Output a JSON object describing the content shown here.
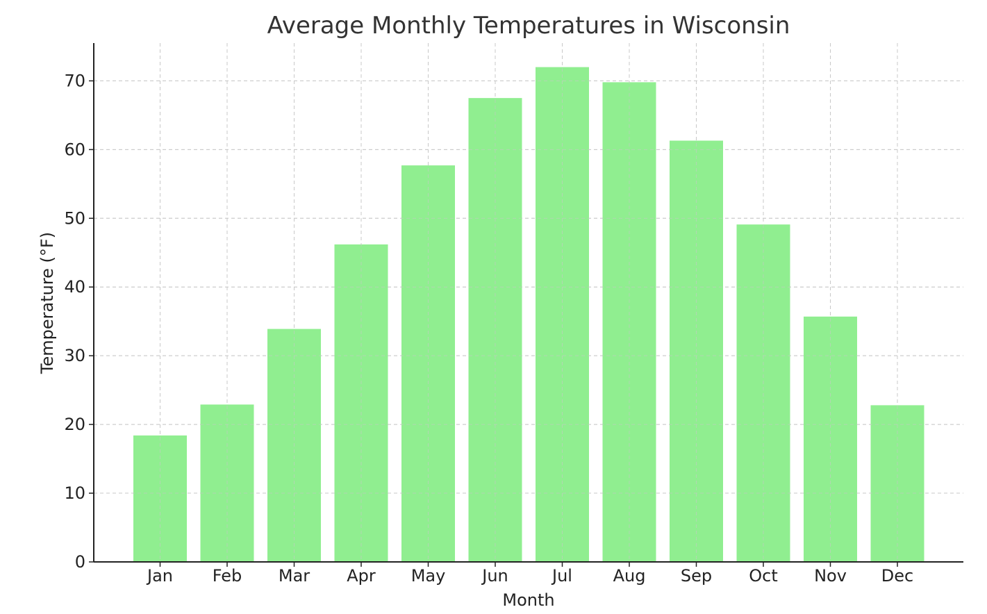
{
  "chart_data": {
    "type": "bar",
    "title": "Average Monthly Temperatures in Wisconsin",
    "xlabel": "Month",
    "ylabel": "Temperature (°F)",
    "categories": [
      "Jan",
      "Feb",
      "Mar",
      "Apr",
      "May",
      "Jun",
      "Jul",
      "Aug",
      "Sep",
      "Oct",
      "Nov",
      "Dec"
    ],
    "values": [
      18.4,
      22.9,
      33.9,
      46.2,
      57.7,
      67.5,
      72.0,
      69.8,
      61.3,
      49.1,
      35.7,
      22.8
    ],
    "ylim": [
      0,
      75.5
    ],
    "yticks": [
      0,
      10,
      20,
      30,
      40,
      50,
      60,
      70
    ],
    "grid": true,
    "bar_color": "#90ee90"
  }
}
